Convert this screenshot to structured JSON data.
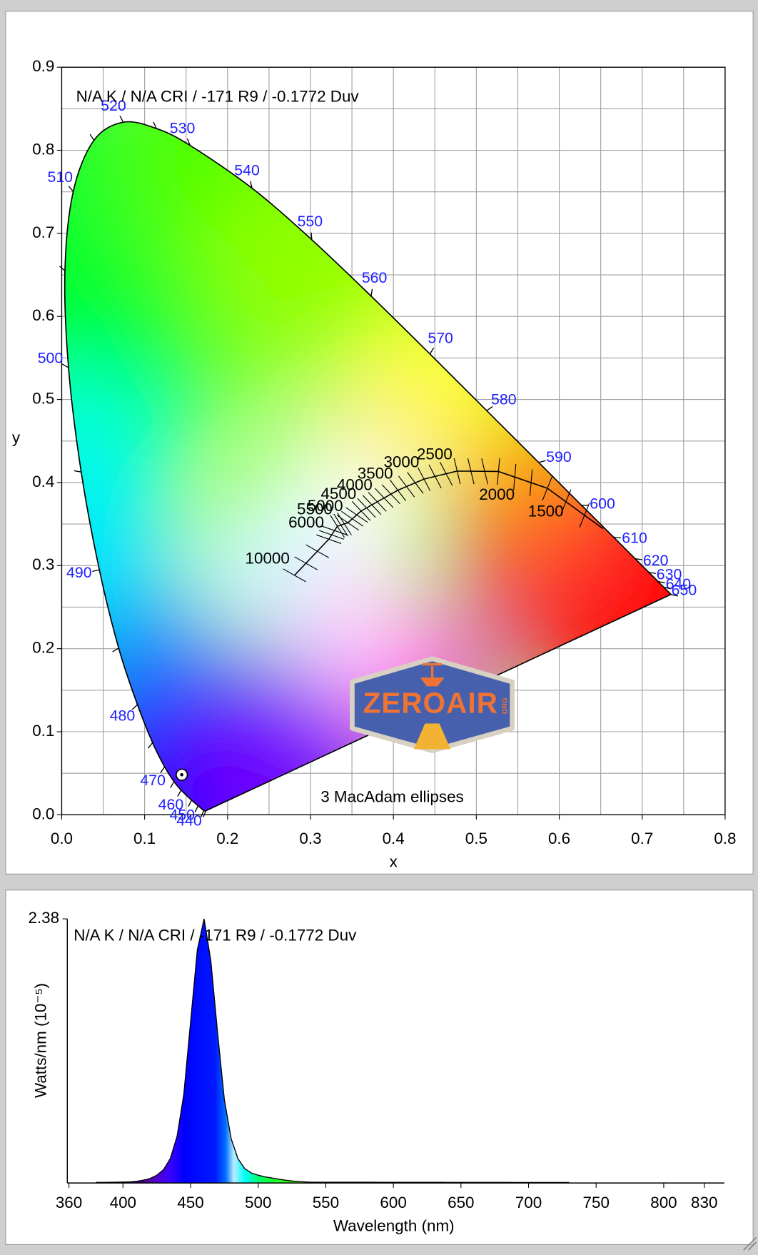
{
  "chart_data": [
    {
      "type": "chromaticity",
      "annotation": "N/A K / N/A CRI / -171 R9 / -0.1772 Duv",
      "xlabel": "x",
      "ylabel": "y",
      "xlim": [
        0,
        0.8
      ],
      "ylim": [
        0,
        0.9
      ],
      "xticks": [
        {
          "value": 0,
          "label": "0.0"
        },
        0.1,
        0.2,
        0.3,
        0.4,
        0.5,
        0.6,
        0.7,
        0.8
      ],
      "yticks": [
        {
          "value": 0,
          "label": "0.0"
        },
        0.1,
        0.2,
        0.3,
        0.4,
        0.5,
        0.6,
        0.7,
        0.8,
        0.9
      ],
      "xminor": [
        0.05,
        0.15,
        0.25,
        0.35,
        0.45,
        0.55,
        0.65,
        0.75
      ],
      "yminor": [
        0.05,
        0.15,
        0.25,
        0.35,
        0.45,
        0.55,
        0.65,
        0.75,
        0.85
      ],
      "grid": true,
      "locus": {
        "wavelengths": [
          null,
          null,
          440,
          450,
          460,
          null,
          470,
          null,
          480,
          null,
          490,
          null,
          500,
          null,
          510,
          null,
          520,
          null,
          530,
          540,
          550,
          560,
          570,
          580,
          590,
          600,
          610,
          620,
          630,
          640,
          650,
          null
        ],
        "x": [
          0.1741,
          0.1714,
          0.1644,
          0.1566,
          0.144,
          0.1355,
          0.1241,
          0.1096,
          0.0913,
          0.0687,
          0.0454,
          0.0235,
          0.0082,
          0.0039,
          0.0139,
          0.0389,
          0.0743,
          0.1142,
          0.1547,
          0.2296,
          0.3016,
          0.3731,
          0.4441,
          0.5125,
          0.5752,
          0.627,
          0.6658,
          0.6915,
          0.7079,
          0.719,
          0.726,
          0.7347
        ],
        "y": [
          0.005,
          0.0051,
          0.0109,
          0.0177,
          0.0297,
          0.0399,
          0.0578,
          0.0868,
          0.1327,
          0.2007,
          0.295,
          0.4127,
          0.5384,
          0.6548,
          0.7502,
          0.812,
          0.8338,
          0.8262,
          0.8059,
          0.7543,
          0.6923,
          0.6245,
          0.5547,
          0.4866,
          0.4242,
          0.3725,
          0.334,
          0.3083,
          0.292,
          0.2809,
          0.274,
          0.2653
        ]
      },
      "planckian": {
        "cct": [
          10000,
          6000,
          5500,
          5000,
          4500,
          4000,
          3500,
          3000,
          2500,
          2000,
          1500,
          null
        ],
        "x": [
          0.2807,
          0.3221,
          0.3324,
          0.3451,
          0.3611,
          0.3805,
          0.4053,
          0.4369,
          0.4769,
          0.5267,
          0.5857,
          0.6528
        ],
        "y": [
          0.2883,
          0.3318,
          0.3474,
          0.3516,
          0.3658,
          0.3768,
          0.3907,
          0.4041,
          0.4138,
          0.4133,
          0.3931,
          0.3444
        ]
      },
      "point": {
        "x": 0.1448,
        "y": 0.0482
      },
      "ellipse_note": "3  MacAdam ellipses",
      "watermark": {
        "text": "ZEROAIR",
        "sub": "ORG"
      }
    },
    {
      "type": "area",
      "annotation": "N/A K / N/A CRI / -171 R9 / -0.1772 Duv",
      "xlabel": "Wavelength (nm)",
      "ylabel": "Watts/nm (10⁻⁵)",
      "xlim": [
        360,
        830
      ],
      "ylim": [
        0,
        2.38
      ],
      "xticks": [
        360,
        400,
        450,
        500,
        550,
        600,
        650,
        700,
        750,
        800,
        830
      ],
      "yticks": [
        2.38
      ],
      "x": [
        380,
        385,
        390,
        395,
        400,
        405,
        410,
        415,
        420,
        425,
        430,
        435,
        440,
        445,
        450,
        455,
        460,
        465,
        470,
        475,
        480,
        485,
        490,
        495,
        500,
        505,
        510,
        515,
        520,
        525,
        530,
        535,
        540,
        545,
        550,
        555,
        560,
        565,
        570,
        575,
        580,
        585,
        590,
        595,
        600,
        605,
        610,
        615,
        620,
        625,
        630,
        635,
        640,
        645,
        650,
        655,
        660,
        665,
        670,
        675,
        680,
        685,
        690,
        695,
        700,
        705,
        710,
        715,
        720,
        725,
        730
      ],
      "values": [
        0.005,
        0.005,
        0.006,
        0.007,
        0.008,
        0.01,
        0.015,
        0.025,
        0.04,
        0.07,
        0.12,
        0.22,
        0.42,
        0.8,
        1.45,
        2.1,
        2.38,
        2.0,
        1.35,
        0.75,
        0.4,
        0.22,
        0.13,
        0.09,
        0.07,
        0.055,
        0.045,
        0.035,
        0.025,
        0.018,
        0.012,
        0.009,
        0.007,
        0.007,
        0.007,
        0.007,
        0.007,
        0.007,
        0.007,
        0.007,
        0.007,
        0.007,
        0.006,
        0.006,
        0.006,
        0.006,
        0.006,
        0.006,
        0.006,
        0.006,
        0.006,
        0.006,
        0.005,
        0.005,
        0.005,
        0.005,
        0.005,
        0.005,
        0.005,
        0.005,
        0.005,
        0.005,
        0.004,
        0.004,
        0.004,
        0.004,
        0.004,
        0.004,
        0.004,
        0.004,
        0.004
      ]
    }
  ]
}
